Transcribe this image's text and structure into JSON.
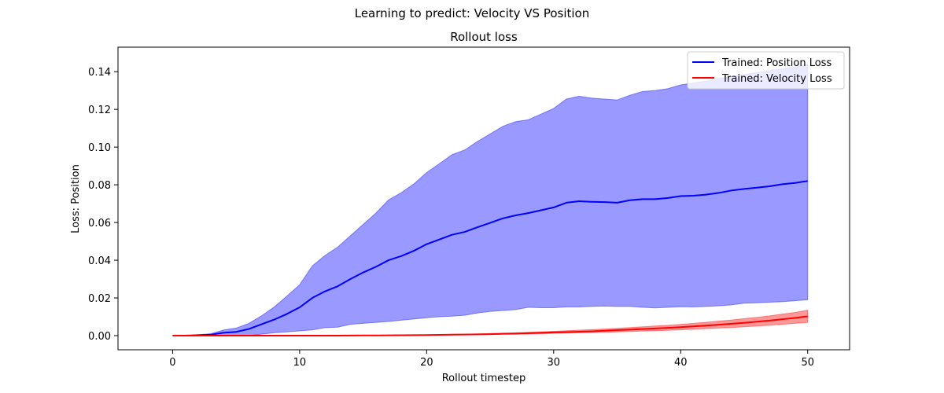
{
  "chart_data": {
    "type": "line",
    "suptitle": "Learning to predict: Velocity VS Position",
    "title": "Rollout loss",
    "xlabel": "Rollout timestep",
    "ylabel": "Loss: Position",
    "xlim": [
      -4.3,
      53.3
    ],
    "ylim": [
      -0.0075,
      0.153
    ],
    "xticks": [
      0,
      10,
      20,
      30,
      40,
      50
    ],
    "yticks": [
      "0.00",
      "0.02",
      "0.04",
      "0.06",
      "0.08",
      "0.10",
      "0.12",
      "0.14"
    ],
    "ytick_values": [
      0,
      0.02,
      0.04,
      0.06,
      0.08,
      0.1,
      0.12,
      0.14
    ],
    "legend_position": "top-right",
    "x": [
      0,
      1,
      2,
      3,
      4,
      5,
      6,
      7,
      8,
      9,
      10,
      11,
      12,
      13,
      14,
      15,
      16,
      17,
      18,
      19,
      20,
      21,
      22,
      23,
      24,
      25,
      26,
      27,
      28,
      29,
      30,
      31,
      32,
      33,
      34,
      35,
      36,
      37,
      38,
      39,
      40,
      41,
      42,
      43,
      44,
      45,
      46,
      47,
      48,
      49,
      50
    ],
    "series": [
      {
        "name": "Trained: Position Loss",
        "color": "#0000ff",
        "band_color": "#0000ff",
        "values": [
          0,
          0,
          0.0002,
          0.0005,
          0.0015,
          0.002,
          0.0035,
          0.006,
          0.0085,
          0.0115,
          0.015,
          0.02,
          0.0235,
          0.0262,
          0.03,
          0.0335,
          0.0365,
          0.04,
          0.0422,
          0.045,
          0.0485,
          0.051,
          0.0535,
          0.055,
          0.0575,
          0.0598,
          0.0622,
          0.0638,
          0.065,
          0.0665,
          0.068,
          0.0705,
          0.0713,
          0.071,
          0.0708,
          0.0705,
          0.0718,
          0.0724,
          0.0724,
          0.073,
          0.074,
          0.0742,
          0.0748,
          0.0757,
          0.077,
          0.0778,
          0.0785,
          0.0792,
          0.0803,
          0.081,
          0.082
        ],
        "lower": [
          0,
          0,
          0,
          0,
          0,
          0,
          0,
          0.0008,
          0.0015,
          0.002,
          0.0025,
          0.003,
          0.0042,
          0.0045,
          0.006,
          0.0065,
          0.007,
          0.0075,
          0.0082,
          0.0088,
          0.0095,
          0.01,
          0.0103,
          0.0108,
          0.012,
          0.0128,
          0.0133,
          0.0138,
          0.015,
          0.0148,
          0.0148,
          0.0152,
          0.0152,
          0.0155,
          0.0157,
          0.0155,
          0.0155,
          0.015,
          0.0147,
          0.015,
          0.0153,
          0.0152,
          0.0155,
          0.0158,
          0.0163,
          0.0172,
          0.0174,
          0.0177,
          0.018,
          0.0185,
          0.019
        ],
        "upper": [
          0,
          0,
          0.0005,
          0.001,
          0.003,
          0.004,
          0.0065,
          0.0105,
          0.0152,
          0.021,
          0.027,
          0.037,
          0.0425,
          0.047,
          0.053,
          0.059,
          0.065,
          0.072,
          0.0758,
          0.0805,
          0.0865,
          0.0912,
          0.096,
          0.0985,
          0.103,
          0.107,
          0.111,
          0.1135,
          0.1145,
          0.1175,
          0.1205,
          0.1255,
          0.127,
          0.126,
          0.1255,
          0.125,
          0.1275,
          0.1295,
          0.13,
          0.131,
          0.133,
          0.134,
          0.135,
          0.1365,
          0.1375,
          0.1385,
          0.1395,
          0.1405,
          0.1415,
          0.1425,
          0.144
        ]
      },
      {
        "name": "Trained: Velocity Loss",
        "color": "#ff0000",
        "band_color": "#ff0000",
        "values": [
          0,
          0,
          0,
          0,
          0,
          0,
          0,
          0,
          0,
          0,
          0,
          0,
          0,
          0,
          5e-05,
          0.0001,
          0.00012,
          0.00015,
          0.0002,
          0.00025,
          0.0003,
          0.0004,
          0.0005,
          0.0006,
          0.0007,
          0.0008,
          0.001,
          0.0011,
          0.0013,
          0.0015,
          0.0017,
          0.0019,
          0.0021,
          0.0023,
          0.0026,
          0.0029,
          0.0032,
          0.0035,
          0.0038,
          0.0041,
          0.0045,
          0.0049,
          0.0053,
          0.0058,
          0.0063,
          0.0068,
          0.0074,
          0.008,
          0.0087,
          0.0094,
          0.0102
        ],
        "lower": [
          0,
          0,
          0,
          0,
          0,
          0,
          0,
          0,
          0,
          0,
          0,
          0,
          0,
          0,
          3e-05,
          6e-05,
          8e-05,
          0.0001,
          0.00014,
          0.00018,
          0.00022,
          0.0003,
          0.00035,
          0.0004,
          0.0005,
          0.0006,
          0.0007,
          0.0008,
          0.0009,
          0.001,
          0.0012,
          0.0013,
          0.0015,
          0.0016,
          0.0018,
          0.002,
          0.0022,
          0.0024,
          0.0026,
          0.0028,
          0.0031,
          0.0034,
          0.0037,
          0.004,
          0.0043,
          0.0047,
          0.0051,
          0.0055,
          0.006,
          0.0065,
          0.007
        ],
        "upper": [
          0,
          0,
          0,
          0,
          0,
          0,
          0,
          0,
          0,
          0,
          0,
          0,
          0,
          0,
          8e-05,
          0.00015,
          0.00018,
          0.00022,
          0.0003,
          0.00035,
          0.0004,
          0.0005,
          0.0007,
          0.0008,
          0.0009,
          0.0011,
          0.0013,
          0.0015,
          0.0018,
          0.002,
          0.0023,
          0.0026,
          0.0029,
          0.0032,
          0.0035,
          0.0039,
          0.0043,
          0.0047,
          0.0051,
          0.0055,
          0.006,
          0.0065,
          0.0071,
          0.0077,
          0.0083,
          0.009,
          0.0097,
          0.0105,
          0.0114,
          0.0123,
          0.0135
        ]
      }
    ]
  }
}
